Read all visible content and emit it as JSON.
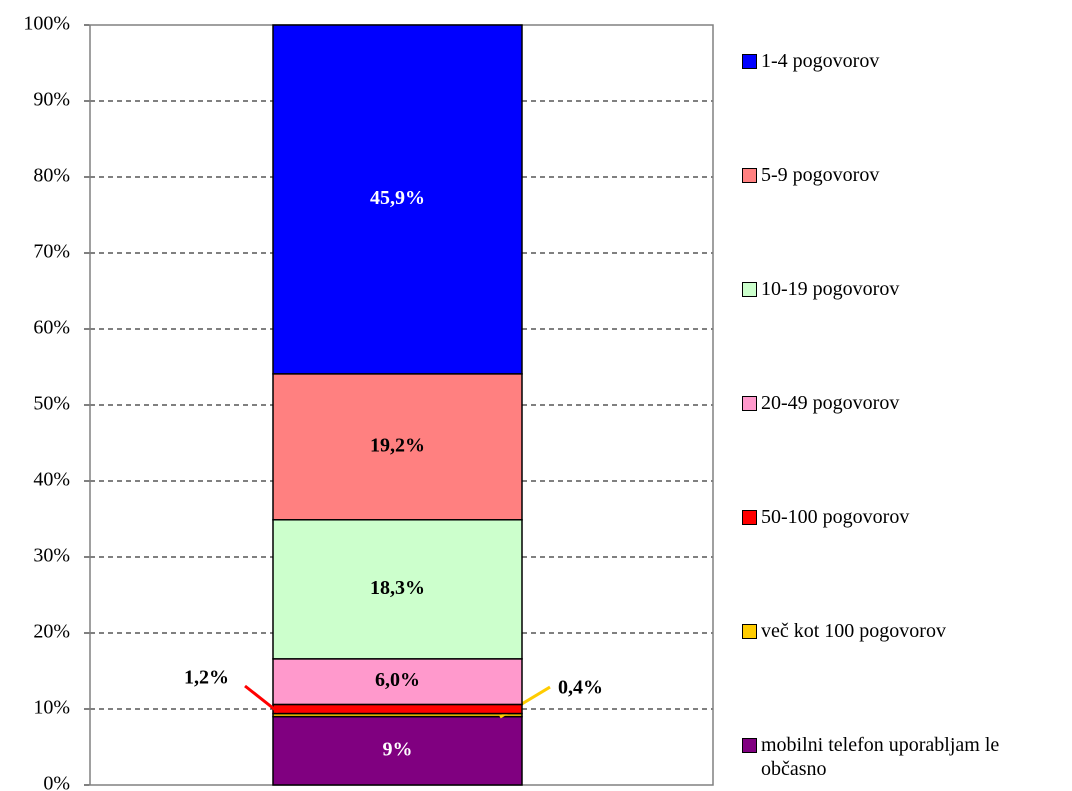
{
  "chart_data": {
    "type": "stacked_bar",
    "categories": [
      null
    ],
    "series": [
      {
        "name": "1-4 pogovorov",
        "color": "#0000ff",
        "values": [
          45.9
        ],
        "value_labels": [
          "45,9%"
        ]
      },
      {
        "name": "5-9 pogovorov",
        "color": "#ff8080",
        "values": [
          19.2
        ],
        "value_labels": [
          "19,2%"
        ]
      },
      {
        "name": "10-19 pogovorov",
        "color": "#ccffcc",
        "values": [
          18.3
        ],
        "value_labels": [
          "18,3%"
        ]
      },
      {
        "name": "20-49 pogovorov",
        "color": "#ff99cc",
        "values": [
          6.0
        ],
        "value_labels": [
          "6,0%"
        ]
      },
      {
        "name": "50-100 pogovorov",
        "color": "#ff0000",
        "values": [
          1.2
        ],
        "value_labels": [
          "1,2%"
        ]
      },
      {
        "name": "več kot 100 pogovorov",
        "color": "#ffcc00",
        "values": [
          0.4
        ],
        "value_labels": [
          "0,4%"
        ]
      },
      {
        "name": "mobilni telefon uporabljam le občasno",
        "color": "#800080",
        "values": [
          9
        ],
        "value_labels": [
          "9%"
        ]
      }
    ],
    "ylim": [
      0,
      100
    ],
    "yticks": [
      {
        "value": 0,
        "label": "0%"
      },
      {
        "value": 10,
        "label": "10%"
      },
      {
        "value": 20,
        "label": "20%"
      },
      {
        "value": 30,
        "label": "30%"
      },
      {
        "value": 40,
        "label": "40%"
      },
      {
        "value": 50,
        "label": "50%"
      },
      {
        "value": 60,
        "label": "60%"
      },
      {
        "value": 70,
        "label": "70%"
      },
      {
        "value": 80,
        "label": "80%"
      },
      {
        "value": 90,
        "label": "90%"
      },
      {
        "value": 100,
        "label": "100%"
      }
    ],
    "grid": true,
    "legend": "right"
  }
}
